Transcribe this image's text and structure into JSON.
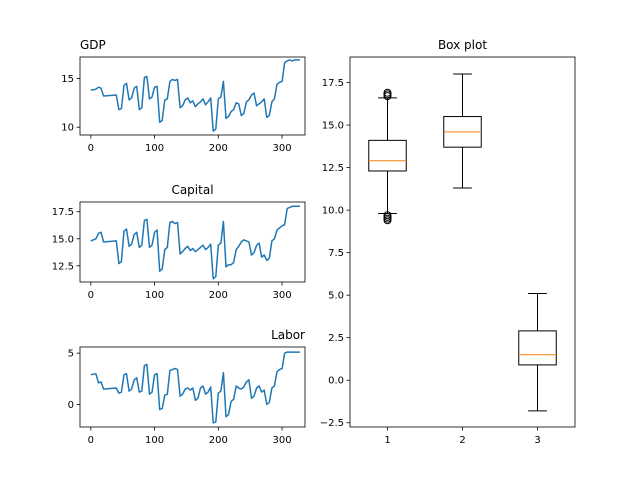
{
  "chart_data": [
    {
      "type": "line",
      "title": "GDP",
      "title_align": "left",
      "xlim": [
        -17,
        336
      ],
      "ylim": [
        9.2,
        17.2
      ],
      "xticks": [
        0,
        100,
        200,
        300
      ],
      "xtick_labels": [
        "0",
        "100",
        "200",
        "300"
      ],
      "yticks": [
        10,
        15
      ],
      "ytick_labels": [
        "10",
        "15"
      ],
      "color": "#1f77b4",
      "x": [
        0,
        8,
        12,
        16,
        20,
        40,
        44,
        48,
        52,
        56,
        60,
        64,
        68,
        72,
        76,
        80,
        84,
        88,
        92,
        96,
        100,
        104,
        108,
        112,
        116,
        120,
        124,
        128,
        132,
        136,
        140,
        144,
        148,
        152,
        156,
        160,
        164,
        168,
        172,
        176,
        180,
        184,
        188,
        192,
        196,
        200,
        204,
        208,
        212,
        216,
        220,
        224,
        228,
        232,
        236,
        240,
        244,
        248,
        252,
        256,
        260,
        264,
        268,
        272,
        276,
        280,
        284,
        288,
        292,
        296,
        300,
        304,
        308,
        312,
        316,
        320,
        324,
        328
      ],
      "y": [
        13.8,
        13.9,
        14.1,
        14.0,
        13.2,
        13.3,
        11.8,
        11.9,
        14.3,
        14.5,
        12.8,
        13.0,
        14.0,
        14.2,
        11.8,
        12.0,
        15.1,
        15.2,
        12.9,
        13.1,
        14.1,
        14.2,
        10.5,
        10.7,
        12.8,
        12.9,
        14.7,
        14.9,
        14.8,
        14.9,
        12.0,
        12.2,
        12.8,
        13.0,
        12.5,
        12.7,
        12.1,
        12.4,
        12.6,
        12.9,
        12.3,
        12.6,
        13.0,
        9.6,
        9.8,
        12.9,
        13.1,
        14.7,
        10.9,
        11.1,
        11.6,
        11.8,
        12.5,
        12.4,
        11.2,
        11.4,
        12.6,
        12.8,
        13.3,
        13.5,
        12.2,
        12.4,
        12.6,
        12.9,
        11.0,
        11.2,
        12.6,
        12.9,
        14.4,
        14.6,
        14.7,
        16.6,
        16.8,
        16.9,
        16.8,
        16.9,
        16.9,
        16.9
      ]
    },
    {
      "type": "line",
      "title": "Capital",
      "title_align": "center",
      "xlim": [
        -17,
        336
      ],
      "ylim": [
        11.0,
        18.4
      ],
      "xticks": [
        0,
        100,
        200,
        300
      ],
      "xtick_labels": [
        "0",
        "100",
        "200",
        "300"
      ],
      "yticks": [
        12.5,
        15.0,
        17.5
      ],
      "ytick_labels": [
        "12.5",
        "15.0",
        "17.5"
      ],
      "color": "#1f77b4",
      "x": [
        0,
        8,
        12,
        16,
        20,
        40,
        44,
        48,
        52,
        56,
        60,
        64,
        68,
        72,
        76,
        80,
        84,
        88,
        92,
        96,
        100,
        104,
        108,
        112,
        116,
        120,
        124,
        128,
        132,
        136,
        140,
        144,
        148,
        152,
        156,
        160,
        164,
        168,
        172,
        176,
        180,
        184,
        188,
        192,
        196,
        200,
        204,
        208,
        212,
        216,
        220,
        224,
        228,
        232,
        236,
        240,
        244,
        248,
        252,
        256,
        260,
        264,
        268,
        272,
        276,
        280,
        284,
        288,
        292,
        296,
        300,
        304,
        308,
        312,
        316,
        320,
        324,
        328
      ],
      "y": [
        14.8,
        15.0,
        15.5,
        15.6,
        14.7,
        14.8,
        12.7,
        12.9,
        15.7,
        15.9,
        14.3,
        14.5,
        15.4,
        15.6,
        14.2,
        14.4,
        16.7,
        16.8,
        14.2,
        14.4,
        15.6,
        15.8,
        12.0,
        12.2,
        14.0,
        14.2,
        16.5,
        16.6,
        16.4,
        16.5,
        13.6,
        13.8,
        14.1,
        14.3,
        13.9,
        14.1,
        13.8,
        14.0,
        14.2,
        14.4,
        14.0,
        14.2,
        14.5,
        11.3,
        11.5,
        14.4,
        14.6,
        16.6,
        12.4,
        12.6,
        12.6,
        12.8,
        14.0,
        14.3,
        14.7,
        14.9,
        14.8,
        14.7,
        13.5,
        13.7,
        14.4,
        14.6,
        13.3,
        13.5,
        13.0,
        13.2,
        14.8,
        15.0,
        15.8,
        16.0,
        16.2,
        16.3,
        17.8,
        17.9,
        18.0,
        18.0,
        18.0,
        18.0
      ]
    },
    {
      "type": "line",
      "title": "Labor",
      "title_align": "right",
      "xlim": [
        -17,
        336
      ],
      "ylim": [
        -2.2,
        5.6
      ],
      "xticks": [
        0,
        100,
        200,
        300
      ],
      "xtick_labels": [
        "0",
        "100",
        "200",
        "300"
      ],
      "yticks": [
        0,
        5
      ],
      "ytick_labels": [
        "0",
        "5"
      ],
      "color": "#1f77b4",
      "x": [
        0,
        8,
        12,
        16,
        20,
        40,
        44,
        48,
        52,
        56,
        60,
        64,
        68,
        72,
        76,
        80,
        84,
        88,
        92,
        96,
        100,
        104,
        108,
        112,
        116,
        120,
        124,
        128,
        132,
        136,
        140,
        144,
        148,
        152,
        156,
        160,
        164,
        168,
        172,
        176,
        180,
        184,
        188,
        192,
        196,
        200,
        204,
        208,
        212,
        216,
        220,
        224,
        228,
        232,
        236,
        240,
        244,
        248,
        252,
        256,
        260,
        264,
        268,
        272,
        276,
        280,
        284,
        288,
        292,
        296,
        300,
        304,
        308,
        312,
        316,
        320,
        324,
        328
      ],
      "y": [
        2.9,
        3.0,
        2.1,
        2.2,
        1.5,
        1.6,
        1.1,
        1.2,
        2.9,
        3.0,
        1.3,
        1.5,
        2.4,
        2.6,
        1.2,
        1.3,
        3.8,
        3.9,
        1.0,
        1.2,
        2.9,
        3.0,
        -0.5,
        -0.4,
        0.9,
        1.0,
        3.3,
        3.4,
        3.5,
        3.4,
        0.8,
        1.0,
        1.5,
        1.6,
        1.4,
        1.6,
        0.4,
        0.6,
        1.6,
        1.8,
        1.0,
        1.2,
        1.7,
        -1.8,
        -1.7,
        1.1,
        1.3,
        3.1,
        -1.2,
        -1.0,
        0.3,
        0.5,
        1.8,
        1.6,
        1.5,
        1.7,
        2.2,
        2.4,
        0.6,
        0.8,
        1.6,
        1.8,
        1.2,
        1.4,
        0.0,
        0.2,
        1.6,
        1.8,
        3.2,
        3.4,
        3.5,
        5.0,
        5.1,
        5.1,
        5.1,
        5.1,
        5.1,
        5.1
      ]
    },
    {
      "type": "box",
      "title": "Box plot",
      "title_align": "center",
      "categories": [
        "1",
        "2",
        "3"
      ],
      "xlim": [
        0.5,
        3.5
      ],
      "ylim": [
        -2.75,
        19.0
      ],
      "yticks": [
        -2.5,
        0.0,
        2.5,
        5.0,
        7.5,
        10.0,
        12.5,
        15.0,
        17.5
      ],
      "ytick_labels": [
        "−2.5",
        "0.0",
        "2.5",
        "5.0",
        "7.5",
        "10.0",
        "12.5",
        "15.0",
        "17.5"
      ],
      "median_color": "#ff7f0e",
      "boxes": [
        {
          "label": "1",
          "whislo": 9.8,
          "q1": 12.3,
          "med": 12.9,
          "q3": 14.1,
          "whishi": 16.6,
          "fliers": [
            9.4,
            9.5,
            9.6,
            9.7,
            16.7,
            16.8,
            16.9
          ]
        },
        {
          "label": "2",
          "whislo": 11.3,
          "q1": 13.7,
          "med": 14.6,
          "q3": 15.5,
          "whishi": 18.0,
          "fliers": []
        },
        {
          "label": "3",
          "whislo": -1.8,
          "q1": 0.9,
          "med": 1.5,
          "q3": 2.9,
          "whishi": 5.1,
          "fliers": []
        }
      ]
    }
  ]
}
